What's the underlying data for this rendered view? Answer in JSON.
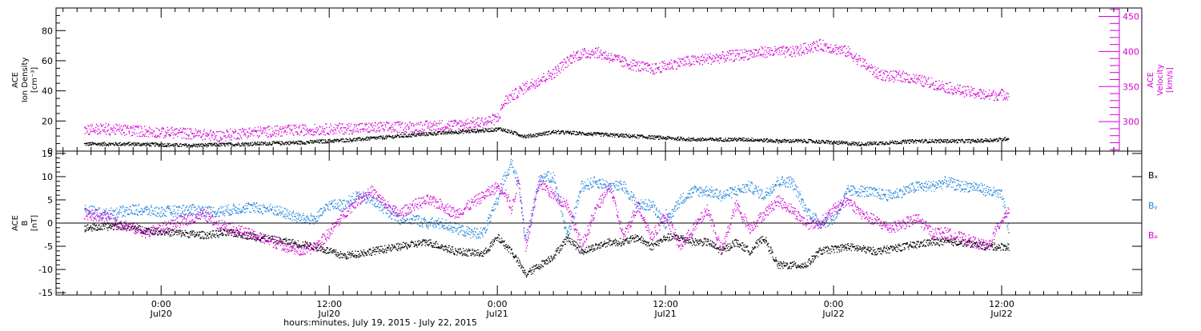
{
  "chart_data": [
    {
      "type": "scatter",
      "panel": "top",
      "ylabel_left": [
        "ACE",
        "Ion Density",
        "[cm⁻³]"
      ],
      "ylabel_right": [
        "ACE",
        "Velocity",
        "[km/s]"
      ],
      "ylim_left": [
        0,
        95
      ],
      "ylim_right": [
        258,
        462
      ],
      "yticks_left": [
        "0",
        "20",
        "40",
        "60",
        "80"
      ],
      "yticks_right": [
        "300",
        "350",
        "400",
        "450"
      ],
      "right_axis_color": "#d400d4",
      "series": [
        {
          "axis": "left",
          "color": "#000000",
          "x": [
            -5.5,
            -2,
            2,
            6,
            10,
            14,
            18,
            21,
            23,
            24.2,
            26,
            28,
            30,
            32,
            34,
            36,
            38,
            40,
            42,
            44,
            46,
            48,
            50,
            52,
            54,
            56,
            58,
            60,
            60.5
          ],
          "values": [
            5,
            5,
            4,
            5,
            6,
            8,
            11,
            13,
            14,
            15,
            10,
            13,
            12,
            11,
            10,
            9,
            8,
            8,
            8,
            7,
            7,
            6,
            5,
            6,
            7,
            7,
            7,
            8,
            9
          ]
        },
        {
          "axis": "right",
          "color": "#d400d4",
          "x": [
            -5.5,
            -4,
            -2,
            0,
            1,
            3,
            4,
            6,
            9,
            12,
            15,
            18,
            21,
            23,
            24,
            24.5,
            26,
            28,
            29.5,
            31,
            33,
            35,
            37,
            39,
            41,
            43,
            45,
            47,
            49,
            51,
            52,
            53,
            55,
            57,
            59,
            60.5
          ],
          "values": [
            290,
            290,
            288,
            285,
            285,
            282,
            280,
            285,
            288,
            290,
            292,
            293,
            296,
            300,
            305,
            330,
            350,
            370,
            395,
            400,
            385,
            375,
            385,
            390,
            395,
            400,
            400,
            410,
            400,
            370,
            365,
            365,
            355,
            345,
            338,
            340
          ]
        }
      ]
    },
    {
      "type": "scatter",
      "panel": "bottom",
      "ylabel": [
        "ACE",
        "B",
        "[nT]"
      ],
      "ylim": [
        -15.5,
        15.5
      ],
      "yticks": [
        "-15",
        "-10",
        "-5",
        "0",
        "5",
        "10",
        "15"
      ],
      "legend": [
        "Bₓ",
        "Bᵧ",
        "Bₔ"
      ],
      "series": [
        {
          "name": "Bx",
          "color": "#000000",
          "x": [
            -5.5,
            -3,
            -1,
            1,
            3,
            5,
            7,
            9,
            11,
            13,
            15,
            17,
            19,
            21,
            23,
            24,
            25,
            26,
            27,
            28,
            29,
            30,
            31,
            32,
            33,
            34,
            35,
            36,
            37,
            38,
            39,
            40,
            41,
            42,
            43,
            44,
            46,
            47,
            49,
            51,
            53,
            55,
            57,
            59,
            60.5
          ],
          "values": [
            -1,
            -0.5,
            -1.5,
            -2,
            -2.5,
            -2,
            -3,
            -4,
            -5,
            -7,
            -6,
            -5,
            -4,
            -6,
            -6.5,
            -3,
            -6,
            -11,
            -9,
            -7,
            -3,
            -6,
            -5,
            -4,
            -4,
            -3,
            -5,
            -3,
            -3,
            -4,
            -4,
            -6,
            -4,
            -6,
            -3,
            -9,
            -9,
            -6,
            -5,
            -6,
            -5,
            -4,
            -4,
            -5,
            -5
          ]
        },
        {
          "name": "By",
          "color": "#1e84dc",
          "x": [
            -5.5,
            -4,
            -2,
            0,
            2,
            4,
            6,
            8,
            10,
            11,
            12,
            13,
            14,
            15,
            16,
            17,
            18,
            19,
            20,
            21,
            22,
            23,
            24,
            24.5,
            25,
            25.5,
            26,
            27,
            28,
            29,
            30,
            31,
            32,
            33,
            34,
            35,
            36,
            37,
            38,
            39,
            40,
            41,
            42,
            43,
            44,
            45,
            46,
            47,
            48,
            49,
            50,
            52,
            53,
            54,
            55,
            56,
            57,
            58,
            59,
            60,
            60.5
          ],
          "values": [
            3,
            2,
            3,
            2.5,
            3,
            2.5,
            3.5,
            3,
            1,
            1,
            4,
            4,
            6,
            5,
            3,
            1,
            1,
            0,
            0,
            -1,
            -2,
            -2,
            5,
            10,
            13,
            8,
            -4,
            10,
            10,
            -3,
            8,
            9,
            8,
            8,
            4,
            4,
            0,
            5,
            7,
            7,
            6,
            7,
            8,
            6,
            9,
            9,
            3,
            0,
            1,
            7,
            7,
            6,
            7,
            8,
            8,
            9,
            8,
            8,
            7,
            6,
            -2
          ]
        },
        {
          "name": "Bz",
          "color": "#d400d4",
          "x": [
            -5.5,
            -4,
            -3,
            -1,
            0,
            1,
            2,
            3,
            4,
            6,
            8,
            10,
            11,
            12,
            13,
            14,
            15,
            16,
            17,
            18,
            19,
            20,
            21,
            22,
            23,
            24,
            24.5,
            25,
            25.5,
            26,
            27,
            28,
            29,
            30,
            31,
            32,
            33,
            34,
            35,
            36,
            37,
            38,
            39,
            40,
            41,
            42,
            43,
            44,
            45,
            46,
            47,
            48,
            49,
            50,
            52,
            53,
            54,
            55,
            56,
            57,
            58,
            59,
            60,
            60.5
          ],
          "values": [
            2,
            1.5,
            0,
            -2,
            -1,
            0,
            1,
            2,
            0,
            -2,
            -4,
            -6,
            -5,
            -2,
            2,
            5,
            7,
            4,
            2,
            4,
            5,
            4,
            2,
            4,
            6,
            8,
            7,
            3,
            10,
            -5,
            9,
            6,
            4,
            -5,
            3,
            8,
            -3,
            4,
            -3,
            2,
            -5,
            -1,
            3,
            -6,
            4,
            -1,
            2,
            5,
            3,
            0,
            0,
            3,
            5,
            2,
            -1,
            0,
            1,
            -2,
            -2,
            -3,
            -4,
            -5,
            1,
            3
          ]
        }
      ]
    }
  ],
  "x_axis": {
    "xlim": [
      -7.5,
      70
    ],
    "major_ticks": [
      0,
      12,
      24,
      36,
      48,
      60
    ],
    "minor_step": 1,
    "tick_labels": [
      {
        "time": "0:00",
        "day": "Jul20"
      },
      {
        "time": "12:00",
        "day": "Jul20"
      },
      {
        "time": "0:00",
        "day": "Jul21"
      },
      {
        "time": "12:00",
        "day": "Jul21"
      },
      {
        "time": "0:00",
        "day": "Jul22"
      },
      {
        "time": "12:00",
        "day": "Jul22"
      }
    ],
    "title": "hours:minutes, July 19, 2015 - July 22, 2015"
  }
}
